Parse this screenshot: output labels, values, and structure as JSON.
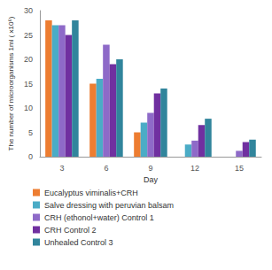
{
  "chart_data": {
    "type": "bar",
    "x_label": "Day",
    "y_label": "The number of microorganisms 1ml ( x10⁶)",
    "categories": [
      "3",
      "6",
      "9",
      "12",
      "15"
    ],
    "series": [
      {
        "name": "Eucalyptus viminalis+CRH",
        "color": "#ed7d31",
        "values": [
          28,
          15,
          5,
          0,
          0
        ]
      },
      {
        "name": "Salve dressing with peruvian balsam",
        "color": "#4bacc6",
        "values": [
          27,
          16,
          7,
          2.5,
          0
        ]
      },
      {
        "name": "CRH (ethonol+water) Control 1",
        "color": "#8e6ac8",
        "values": [
          27,
          23,
          9,
          3.3,
          1.2
        ]
      },
      {
        "name": "CRH Control 2",
        "color": "#7030a0",
        "values": [
          25,
          19,
          13,
          6.5,
          3
        ]
      },
      {
        "name": "Unhealed Control 3",
        "color": "#31859c",
        "values": [
          28,
          20,
          14,
          7.8,
          3.5
        ]
      }
    ],
    "ylim": [
      0,
      30
    ],
    "yticks": [
      0,
      5,
      10,
      15,
      20,
      25,
      30
    ],
    "grid": false,
    "legend": "bottom"
  }
}
